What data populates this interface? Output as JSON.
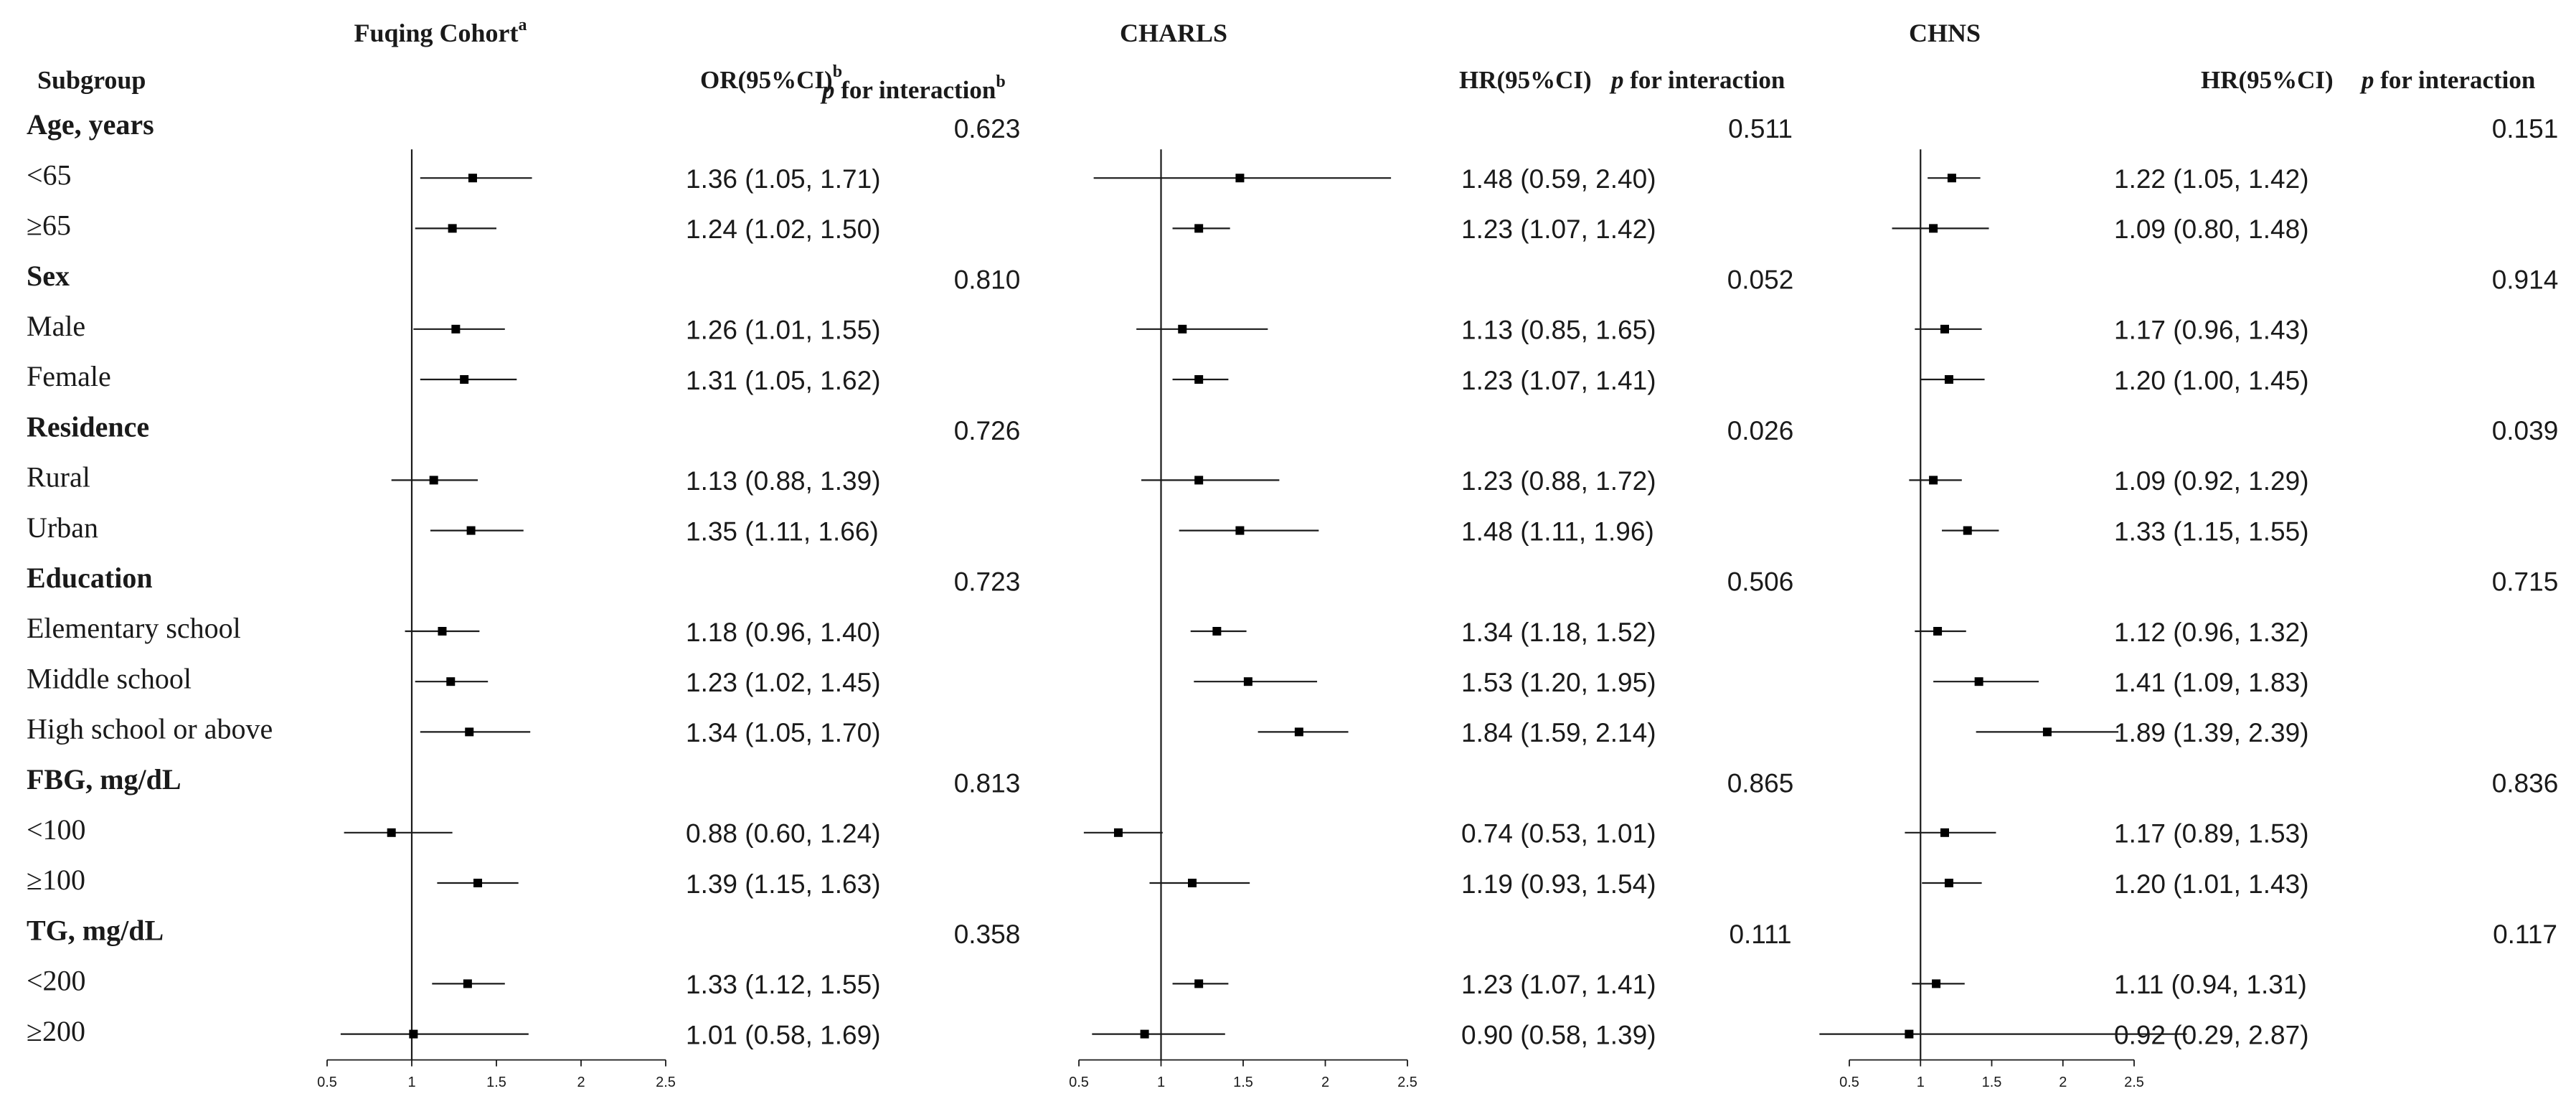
{
  "chart_data": {
    "type": "forest",
    "row_label_header": "Subgroup",
    "panels": [
      {
        "id": "fuqing",
        "title": "Fuqing Cohort",
        "title_sup": "a",
        "estimate_header": "OR(95%CI)",
        "estimate_header_sup": "b",
        "p_header_italic": "p",
        "p_header_rest": " for interaction",
        "p_header_sup": "b",
        "xlim": [
          0.5,
          2.5
        ],
        "ref": 1,
        "ticks": [
          0.5,
          1,
          1.5,
          2,
          2.5
        ],
        "tick_labels": [
          "0.5",
          "1",
          "1.5",
          "2",
          "2.5"
        ],
        "groups": [
          {
            "label": "Age, years",
            "p": "0.623",
            "rows": [
              {
                "label": "<65",
                "est": 1.36,
                "lo": 1.05,
                "hi": 1.71,
                "text": "1.36 (1.05, 1.71)"
              },
              {
                "label": "≥65",
                "est": 1.24,
                "lo": 1.02,
                "hi": 1.5,
                "text": "1.24 (1.02, 1.50)"
              }
            ]
          },
          {
            "label": "Sex",
            "p": "0.810",
            "rows": [
              {
                "label": "Male",
                "est": 1.26,
                "lo": 1.01,
                "hi": 1.55,
                "text": "1.26 (1.01, 1.55)"
              },
              {
                "label": "Female",
                "est": 1.31,
                "lo": 1.05,
                "hi": 1.62,
                "text": "1.31 (1.05, 1.62)"
              }
            ]
          },
          {
            "label": "Residence",
            "p": "0.726",
            "rows": [
              {
                "label": "Rural",
                "est": 1.13,
                "lo": 0.88,
                "hi": 1.39,
                "text": "1.13 (0.88, 1.39)"
              },
              {
                "label": "Urban",
                "est": 1.35,
                "lo": 1.11,
                "hi": 1.66,
                "text": "1.35 (1.11, 1.66)"
              }
            ]
          },
          {
            "label": "Education",
            "p": "0.723",
            "rows": [
              {
                "label": "Elementary school",
                "est": 1.18,
                "lo": 0.96,
                "hi": 1.4,
                "text": "1.18 (0.96, 1.40)"
              },
              {
                "label": "Middle school",
                "est": 1.23,
                "lo": 1.02,
                "hi": 1.45,
                "text": "1.23 (1.02, 1.45)"
              },
              {
                "label": "High school or above",
                "est": 1.34,
                "lo": 1.05,
                "hi": 1.7,
                "text": "1.34 (1.05, 1.70)"
              }
            ]
          },
          {
            "label": "FBG, mg/dL",
            "p": "0.813",
            "rows": [
              {
                "label": "<100",
                "est": 0.88,
                "lo": 0.6,
                "hi": 1.24,
                "text": "0.88 (0.60, 1.24)"
              },
              {
                "label": "≥100",
                "est": 1.39,
                "lo": 1.15,
                "hi": 1.63,
                "text": "1.39 (1.15, 1.63)"
              }
            ]
          },
          {
            "label": "TG, mg/dL",
            "p": "0.358",
            "rows": [
              {
                "label": "<200",
                "est": 1.33,
                "lo": 1.12,
                "hi": 1.55,
                "text": "1.33 (1.12, 1.55)"
              },
              {
                "label": "≥200",
                "est": 1.01,
                "lo": 0.58,
                "hi": 1.69,
                "text": "1.01 (0.58, 1.69)"
              }
            ]
          }
        ]
      },
      {
        "id": "charls",
        "title": "CHARLS",
        "title_sup": "",
        "estimate_header": "HR(95%CI)",
        "estimate_header_sup": "",
        "p_header_italic": "p",
        "p_header_rest": " for interaction",
        "p_header_sup": "",
        "xlim": [
          0.5,
          2.5
        ],
        "ref": 1,
        "ticks": [
          0.5,
          1,
          1.5,
          2,
          2.5
        ],
        "tick_labels": [
          "0.5",
          "1",
          "1.5",
          "2",
          "2.5"
        ],
        "groups": [
          {
            "label": "Age, years",
            "p": "0.511",
            "rows": [
              {
                "label": "<65",
                "est": 1.48,
                "lo": 0.59,
                "hi": 2.4,
                "text": "1.48 (0.59, 2.40)"
              },
              {
                "label": "≥65",
                "est": 1.23,
                "lo": 1.07,
                "hi": 1.42,
                "text": "1.23 (1.07, 1.42)"
              }
            ]
          },
          {
            "label": "Sex",
            "p": "0.052",
            "rows": [
              {
                "label": "Male",
                "est": 1.13,
                "lo": 0.85,
                "hi": 1.65,
                "text": "1.13 (0.85, 1.65)"
              },
              {
                "label": "Female",
                "est": 1.23,
                "lo": 1.07,
                "hi": 1.41,
                "text": "1.23 (1.07, 1.41)"
              }
            ]
          },
          {
            "label": "Residence",
            "p": "0.026",
            "rows": [
              {
                "label": "Rural",
                "est": 1.23,
                "lo": 0.88,
                "hi": 1.72,
                "text": "1.23 (0.88, 1.72)"
              },
              {
                "label": "Urban",
                "est": 1.48,
                "lo": 1.11,
                "hi": 1.96,
                "text": "1.48 (1.11, 1.96)"
              }
            ]
          },
          {
            "label": "Education",
            "p": "0.506",
            "rows": [
              {
                "label": "Elementary school",
                "est": 1.34,
                "lo": 1.18,
                "hi": 1.52,
                "text": "1.34 (1.18, 1.52)"
              },
              {
                "label": "Middle school",
                "est": 1.53,
                "lo": 1.2,
                "hi": 1.95,
                "text": "1.53 (1.20, 1.95)"
              },
              {
                "label": "High school or above",
                "est": 1.84,
                "lo": 1.59,
                "hi": 2.14,
                "text": "1.84 (1.59, 2.14)"
              }
            ]
          },
          {
            "label": "FBG, mg/dL",
            "p": "0.865",
            "rows": [
              {
                "label": "<100",
                "est": 0.74,
                "lo": 0.53,
                "hi": 1.01,
                "text": "0.74 (0.53, 1.01)"
              },
              {
                "label": "≥100",
                "est": 1.19,
                "lo": 0.93,
                "hi": 1.54,
                "text": "1.19 (0.93, 1.54)"
              }
            ]
          },
          {
            "label": "TG, mg/dL",
            "p": "0.111",
            "rows": [
              {
                "label": "<200",
                "est": 1.23,
                "lo": 1.07,
                "hi": 1.41,
                "text": "1.23 (1.07, 1.41)"
              },
              {
                "label": "≥200",
                "est": 0.9,
                "lo": 0.58,
                "hi": 1.39,
                "text": "0.90 (0.58, 1.39)"
              }
            ]
          }
        ]
      },
      {
        "id": "chns",
        "title": "CHNS",
        "title_sup": "",
        "estimate_header": "HR(95%CI)",
        "estimate_header_sup": "",
        "p_header_italic": "p",
        "p_header_rest": " for interaction",
        "p_header_sup": "",
        "xlim": [
          0.5,
          2.5
        ],
        "ref": 1,
        "ticks": [
          0.5,
          1,
          1.5,
          2,
          2.5
        ],
        "tick_labels": [
          "0.5",
          "1",
          "1.5",
          "2",
          "2.5"
        ],
        "groups": [
          {
            "label": "Age, years",
            "p": "0.151",
            "rows": [
              {
                "label": "<65",
                "est": 1.22,
                "lo": 1.05,
                "hi": 1.42,
                "text": "1.22 (1.05, 1.42)"
              },
              {
                "label": "≥65",
                "est": 1.09,
                "lo": 0.8,
                "hi": 1.48,
                "text": "1.09 (0.80, 1.48)"
              }
            ]
          },
          {
            "label": "Sex",
            "p": "0.914",
            "rows": [
              {
                "label": "Male",
                "est": 1.17,
                "lo": 0.96,
                "hi": 1.43,
                "text": "1.17 (0.96, 1.43)"
              },
              {
                "label": "Female",
                "est": 1.2,
                "lo": 1.0,
                "hi": 1.45,
                "text": "1.20 (1.00, 1.45)"
              }
            ]
          },
          {
            "label": "Residence",
            "p": "0.039",
            "rows": [
              {
                "label": "Rural",
                "est": 1.09,
                "lo": 0.92,
                "hi": 1.29,
                "text": "1.09 (0.92, 1.29)"
              },
              {
                "label": "Urban",
                "est": 1.33,
                "lo": 1.15,
                "hi": 1.55,
                "text": "1.33 (1.15, 1.55)"
              }
            ]
          },
          {
            "label": "Education",
            "p": "0.715",
            "rows": [
              {
                "label": "Elementary school",
                "est": 1.12,
                "lo": 0.96,
                "hi": 1.32,
                "text": "1.12 (0.96, 1.32)"
              },
              {
                "label": "Middle school",
                "est": 1.41,
                "lo": 1.09,
                "hi": 1.83,
                "text": "1.41 (1.09, 1.83)"
              },
              {
                "label": "High school or above",
                "est": 1.89,
                "lo": 1.39,
                "hi": 2.39,
                "text": "1.89 (1.39, 2.39)"
              }
            ]
          },
          {
            "label": "FBG, mg/dL",
            "p": "0.836",
            "rows": [
              {
                "label": "<100",
                "est": 1.17,
                "lo": 0.89,
                "hi": 1.53,
                "text": "1.17 (0.89, 1.53)"
              },
              {
                "label": "≥100",
                "est": 1.2,
                "lo": 1.01,
                "hi": 1.43,
                "text": "1.20 (1.01, 1.43)"
              }
            ]
          },
          {
            "label": "TG, mg/dL",
            "p": "0.117",
            "rows": [
              {
                "label": "<200",
                "est": 1.11,
                "lo": 0.94,
                "hi": 1.31,
                "text": "1.11 (0.94, 1.31)"
              },
              {
                "label": "≥200",
                "est": 0.92,
                "lo": 0.29,
                "hi": 2.87,
                "text": "0.92 (0.29, 2.87)"
              }
            ]
          }
        ]
      }
    ]
  }
}
